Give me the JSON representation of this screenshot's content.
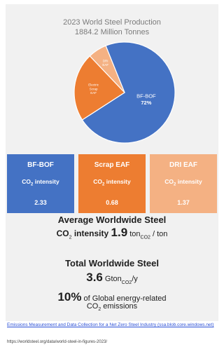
{
  "chart_data": {
    "type": "pie",
    "title": "2023 World Steel Production",
    "subtitle": "1884.2 Million Tonnes",
    "slices": [
      {
        "label": "BF-BOF",
        "value": 72,
        "color": "#4472c4"
      },
      {
        "label": "Electric Scrap EAF",
        "value": 22,
        "color": "#ed7d31"
      },
      {
        "label": "DRI EAF",
        "value": 6,
        "color": "#f4b183"
      }
    ],
    "slice_display": [
      "BF-BOF\n72%",
      "Electric\nScrap\nEAF",
      "DRI\nEAF"
    ]
  },
  "boxes": [
    {
      "name": "BF-BOF",
      "metric_pre": "CO",
      "metric_sub": "2",
      "metric_post": " intensity",
      "value": "2.33",
      "color": "#4472c4"
    },
    {
      "name": "Scrap EAF",
      "metric_pre": "CO",
      "metric_sub": "2",
      "metric_post": " intensity",
      "value": "0.68",
      "color": "#ed7d31"
    },
    {
      "name": "DRI EAF",
      "metric_pre": "CO",
      "metric_sub": "2",
      "metric_post": " intensity",
      "value": "1.37",
      "color": "#f4b183"
    }
  ],
  "average": {
    "line1": "Average Worldwide Steel",
    "prefix": "CO",
    "prefix_sub": "2",
    "prefix_post": " intensity ",
    "value": "1.9",
    "unit_pre": " ton",
    "unit_sub": "CO2",
    "unit_post": " / ton"
  },
  "total": {
    "line1": "Total Worldwide Steel",
    "value": "3.6",
    "unit_pre": " Gton",
    "unit_sub": "CO2",
    "unit_post": "/y"
  },
  "share": {
    "value": "10%",
    "text": " of Global energy-related",
    "line2_pre": "CO",
    "line2_sub": "2",
    "line2_post": " emissions"
  },
  "footer": {
    "link": "Emissions Measurement and Data Collection for a Net Zero Steel Industry (ssa.blob.core.windows.net)",
    "url": "https://worldsteel.org/data/world-steel-in-figures-2023/"
  }
}
